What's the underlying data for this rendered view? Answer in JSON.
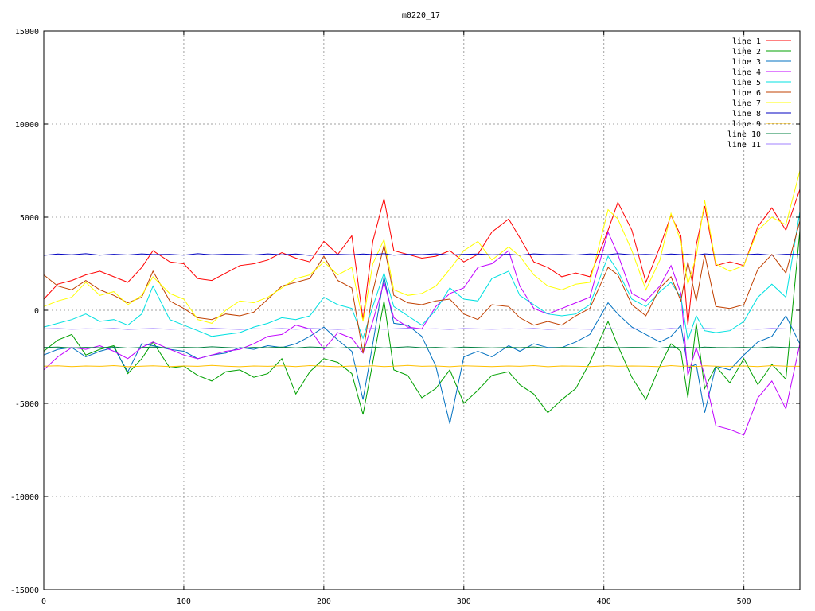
{
  "chart_data": {
    "type": "line",
    "title": "m0220_17",
    "xlabel": "",
    "ylabel": "",
    "xlim": [
      0,
      540
    ],
    "ylim": [
      -15000,
      15000
    ],
    "xticks": [
      0,
      100,
      200,
      300,
      400,
      500
    ],
    "yticks": [
      -15000,
      -10000,
      -5000,
      0,
      5000,
      10000,
      15000
    ],
    "grid": true,
    "legend_position": "top-right",
    "x": [
      0,
      10,
      20,
      30,
      40,
      50,
      60,
      70,
      78,
      90,
      100,
      110,
      120,
      130,
      140,
      150,
      160,
      170,
      180,
      190,
      200,
      210,
      220,
      228,
      235,
      243,
      250,
      260,
      270,
      280,
      290,
      300,
      310,
      320,
      332,
      340,
      350,
      360,
      370,
      380,
      390,
      403,
      410,
      420,
      430,
      440,
      448,
      455,
      460,
      466,
      472,
      480,
      490,
      500,
      510,
      520,
      530,
      540
    ],
    "series": [
      {
        "name": "line 1",
        "color": "#ff0000",
        "values": [
          600,
          1400,
          1600,
          1900,
          2100,
          1800,
          1500,
          2300,
          3200,
          2600,
          2500,
          1700,
          1600,
          2000,
          2400,
          2500,
          2700,
          3100,
          2800,
          2600,
          3700,
          3000,
          4000,
          -500,
          3700,
          6000,
          3200,
          3000,
          2800,
          2900,
          3200,
          2600,
          3000,
          4200,
          4900,
          3900,
          2600,
          2300,
          1800,
          2000,
          1800,
          4300,
          5800,
          4300,
          1500,
          3400,
          5100,
          4000,
          -800,
          3500,
          5600,
          2400,
          2600,
          2400,
          4500,
          5500,
          4300,
          6500
        ]
      },
      {
        "name": "line 2",
        "color": "#00a000",
        "values": [
          -2200,
          -1600,
          -1300,
          -2400,
          -2100,
          -1900,
          -3400,
          -2600,
          -1700,
          -3100,
          -3000,
          -3500,
          -3800,
          -3300,
          -3200,
          -3600,
          -3400,
          -2600,
          -4500,
          -3300,
          -2600,
          -2800,
          -3400,
          -5600,
          -2800,
          500,
          -3200,
          -3500,
          -4700,
          -4200,
          -3200,
          -5000,
          -4300,
          -3500,
          -3300,
          -4000,
          -4500,
          -5500,
          -4800,
          -4200,
          -2800,
          -600,
          -1900,
          -3600,
          -4800,
          -3000,
          -1800,
          -2200,
          -4700,
          -700,
          -4200,
          -3000,
          -3900,
          -2600,
          -4000,
          -2900,
          -3700,
          4300
        ]
      },
      {
        "name": "line 3",
        "color": "#0070c0",
        "values": [
          -2400,
          -2100,
          -2000,
          -2500,
          -2200,
          -2000,
          -3300,
          -1800,
          -1900,
          -2100,
          -2200,
          -2600,
          -2400,
          -2300,
          -2000,
          -2100,
          -1900,
          -2000,
          -1800,
          -1400,
          -900,
          -1600,
          -2200,
          -4800,
          -1800,
          1800,
          -700,
          -800,
          -1400,
          -3000,
          -6100,
          -2500,
          -2200,
          -2500,
          -1900,
          -2200,
          -1800,
          -2000,
          -2000,
          -1700,
          -1300,
          400,
          -200,
          -900,
          -1300,
          -1700,
          -1400,
          -800,
          -3100,
          -2900,
          -5500,
          -3000,
          -3200,
          -2400,
          -1700,
          -1400,
          -300,
          -1800
        ]
      },
      {
        "name": "line 4",
        "color": "#c000ff",
        "values": [
          -3200,
          -2500,
          -2000,
          -2100,
          -1900,
          -2200,
          -2600,
          -2000,
          -1700,
          -2100,
          -2400,
          -2600,
          -2400,
          -2200,
          -2100,
          -1800,
          -1400,
          -1300,
          -800,
          -1000,
          -2100,
          -1200,
          -1500,
          -2300,
          -600,
          1500,
          -400,
          -900,
          -1000,
          200,
          900,
          1200,
          2300,
          2500,
          3200,
          1300,
          100,
          -200,
          100,
          400,
          700,
          4200,
          3000,
          900,
          500,
          1300,
          2400,
          900,
          -3500,
          -2000,
          -3500,
          -6200,
          -6400,
          -6700,
          -4700,
          -3800,
          -5300,
          -1800
        ]
      },
      {
        "name": "line 5",
        "color": "#00e0e0",
        "values": [
          -900,
          -700,
          -500,
          -200,
          -600,
          -500,
          -800,
          -200,
          1300,
          -500,
          -800,
          -1100,
          -1400,
          -1300,
          -1200,
          -900,
          -700,
          -400,
          -500,
          -300,
          700,
          300,
          100,
          -1500,
          200,
          2000,
          200,
          -300,
          -800,
          0,
          1200,
          600,
          500,
          1700,
          2100,
          800,
          300,
          -200,
          -300,
          -200,
          300,
          2900,
          2100,
          600,
          200,
          1000,
          1500,
          700,
          -1600,
          -300,
          -1100,
          -1200,
          -1100,
          -600,
          700,
          1400,
          700,
          5300
        ]
      },
      {
        "name": "line 6",
        "color": "#c04000",
        "values": [
          1900,
          1300,
          1100,
          1600,
          1100,
          800,
          400,
          700,
          2100,
          500,
          100,
          -400,
          -500,
          -200,
          -300,
          -100,
          600,
          1300,
          1500,
          1700,
          2900,
          1600,
          1200,
          -2300,
          1000,
          3500,
          800,
          400,
          300,
          500,
          600,
          -200,
          -500,
          300,
          200,
          -400,
          -800,
          -600,
          -800,
          -300,
          100,
          2300,
          1900,
          300,
          -300,
          1200,
          1800,
          500,
          2600,
          500,
          3000,
          200,
          100,
          300,
          2200,
          3000,
          2000,
          4800
        ]
      },
      {
        "name": "line 7",
        "color": "#ffff00",
        "values": [
          200,
          500,
          700,
          1500,
          800,
          1000,
          300,
          800,
          1800,
          900,
          600,
          -500,
          -700,
          0,
          500,
          400,
          700,
          1200,
          1700,
          1900,
          2600,
          1900,
          2300,
          -600,
          2500,
          3800,
          1100,
          800,
          900,
          1300,
          2200,
          3200,
          3700,
          2700,
          3400,
          2900,
          1900,
          1300,
          1100,
          1400,
          1500,
          5400,
          4900,
          3200,
          1100,
          2700,
          5200,
          3700,
          1400,
          2900,
          5900,
          2500,
          2100,
          2400,
          4300,
          5000,
          4600,
          7500
        ]
      },
      {
        "name": "line 8",
        "color": "#0000c0",
        "values": [
          2950,
          3020,
          2980,
          3040,
          2960,
          3010,
          2970,
          3030,
          2990,
          3000,
          2960,
          3040,
          2980,
          3010,
          3000,
          2970,
          3030,
          2980,
          3020,
          2950,
          3010,
          3000,
          2980,
          3020,
          2990,
          3040,
          2960,
          3010,
          2990,
          3030,
          2970,
          3000,
          3020,
          2980,
          3010,
          2960,
          3030,
          2990,
          3000,
          2970,
          3020,
          2990,
          3040,
          2980,
          3000,
          2970,
          3020,
          2990,
          3010,
          2960,
          3030,
          2990,
          3000,
          2980,
          3020,
          2960,
          3010,
          3000
        ]
      },
      {
        "name": "line 9",
        "color": "#ffc000",
        "values": [
          -3000,
          -2980,
          -3020,
          -2990,
          -3010,
          -2970,
          -3030,
          -3000,
          -2980,
          -3020,
          -2990,
          -3010,
          -2960,
          -3000,
          -3030,
          -2990,
          -3010,
          -2980,
          -3020,
          -2970,
          -3000,
          -3030,
          -2990,
          -3010,
          -2980,
          -3020,
          -3000,
          -2960,
          -3010,
          -2990,
          -3030,
          -2980,
          -3000,
          -3020,
          -2990,
          -3010,
          -2970,
          -3030,
          -2990,
          -3000,
          -3020,
          -2980,
          -3010,
          -2990,
          -3000,
          -3030,
          -2970,
          -3010,
          -2990,
          -3020,
          -2980,
          -3000,
          -3010,
          -2990,
          -3020,
          -2970,
          -3000,
          -3010
        ]
      },
      {
        "name": "line 10",
        "color": "#008040",
        "values": [
          -2000,
          -1980,
          -2020,
          -1990,
          -2010,
          -1970,
          -2030,
          -2000,
          -1980,
          -2020,
          -1990,
          -2010,
          -1960,
          -2000,
          -2030,
          -1990,
          -2010,
          -1980,
          -2020,
          -1970,
          -2000,
          -2030,
          -1990,
          -2010,
          -1980,
          -2020,
          -2000,
          -1960,
          -2010,
          -1990,
          -2030,
          -1980,
          -2000,
          -2020,
          -1990,
          -2010,
          -1970,
          -2030,
          -1990,
          -2000,
          -2020,
          -1980,
          -2010,
          -1990,
          -2000,
          -2030,
          -1970,
          -2010,
          -1990,
          -2020,
          -1980,
          -2000,
          -2010,
          -1990,
          -2020,
          -1970,
          -2000,
          -2010
        ]
      },
      {
        "name": "line 11",
        "color": "#a080ff",
        "values": [
          -1000,
          -980,
          -1020,
          -990,
          -1010,
          -970,
          -1030,
          -1000,
          -980,
          -1020,
          -990,
          -1010,
          -960,
          -1000,
          -1030,
          -990,
          -1010,
          -980,
          -1020,
          -970,
          -1000,
          -1030,
          -990,
          -1010,
          -980,
          -1020,
          -1000,
          -960,
          -1010,
          -990,
          -1030,
          -980,
          -1000,
          -1020,
          -990,
          -1010,
          -970,
          -1030,
          -990,
          -1000,
          -1020,
          -980,
          -1010,
          -990,
          -1000,
          -1030,
          -970,
          -1010,
          -990,
          -1020,
          -980,
          -1000,
          -1010,
          -990,
          -1020,
          -970,
          -1000,
          -1010
        ]
      }
    ]
  }
}
